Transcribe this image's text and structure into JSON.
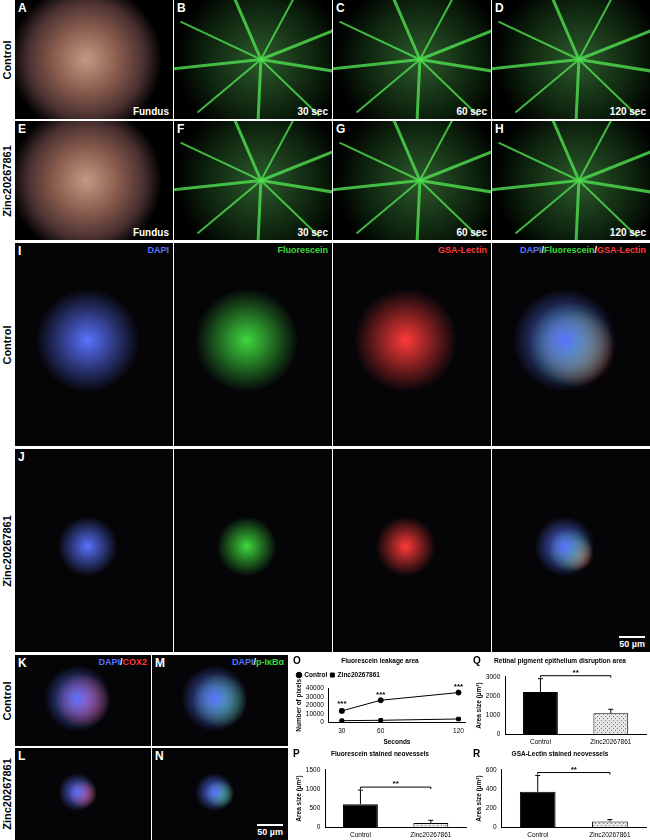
{
  "figure": {
    "fundus_rows": [
      {
        "row_label": "Control",
        "panels": [
          {
            "letter": "A",
            "label": "Fundus"
          },
          {
            "letter": "B",
            "label": "30 sec"
          },
          {
            "letter": "C",
            "label": "60 sec"
          },
          {
            "letter": "D",
            "label": "120 sec"
          }
        ]
      },
      {
        "row_label": "Zinc20267861",
        "panels": [
          {
            "letter": "E",
            "label": "Fundus"
          },
          {
            "letter": "F",
            "label": "30 sec"
          },
          {
            "letter": "G",
            "label": "60 sec"
          },
          {
            "letter": "H",
            "label": "120 sec"
          }
        ]
      }
    ],
    "staining": {
      "channels": [
        {
          "text": "DAPI",
          "colors": [
            "#5a72ff"
          ]
        },
        {
          "text": "Fluorescein",
          "colors": [
            "#3fd83f"
          ]
        },
        {
          "text": "GSA-Lectin",
          "colors": [
            "#ff3a3a"
          ]
        },
        {
          "text": "DAPI/Fluorescein/GSA-Lectin",
          "colors": [
            "#5a72ff",
            "#3fd83f",
            "#ff3a3a"
          ]
        }
      ],
      "rows": [
        {
          "row_label": "Control",
          "letter": "I"
        },
        {
          "row_label": "Zinc20267861",
          "letter": "J",
          "scale_bar": "50 µm"
        }
      ]
    },
    "immuno": {
      "rows": [
        {
          "row_label": "Control",
          "panels": [
            {
              "letter": "K",
              "label": "DAPI/COX2",
              "colors": [
                "#5a72ff",
                "#ff3a3a"
              ]
            },
            {
              "letter": "M",
              "label": "DAPI/p-IκBα",
              "colors": [
                "#5a72ff",
                "#3fd83f"
              ]
            }
          ]
        },
        {
          "row_label": "Zinc20267861",
          "panels": [
            {
              "letter": "L",
              "colors": [
                "#5a72ff",
                "#ff3a3a"
              ]
            },
            {
              "letter": "N",
              "colors": [
                "#5a72ff",
                "#3fd83f"
              ],
              "scale_bar": "50 µm"
            }
          ]
        }
      ]
    }
  },
  "chart_data": [
    {
      "type": "line",
      "panel_letter": "O",
      "title": "Fluorescein leakage area",
      "x_label": "Seconds",
      "y_label": "Number of pixels",
      "x": [
        30,
        60,
        120
      ],
      "xlim": [
        20,
        125
      ],
      "xticks": [
        30,
        60,
        120
      ],
      "ylim": [
        0,
        40000
      ],
      "yticks": [
        0,
        10000,
        20000,
        30000,
        40000
      ],
      "grid": false,
      "legend": "top-left",
      "series": [
        {
          "name": "Control",
          "color": "#000000",
          "marker": "circle",
          "values": [
            13500,
            26000,
            35000
          ],
          "errors": [
            2000,
            800,
            1000
          ]
        },
        {
          "name": "Zinc20267861",
          "color": "#000000",
          "marker": "square",
          "values": [
            2000,
            2500,
            4000
          ],
          "errors": [
            300,
            300,
            400
          ]
        }
      ],
      "annotations": [
        {
          "text": "***",
          "x": 30
        },
        {
          "text": "***",
          "x": 60
        },
        {
          "text": "***",
          "x": 120
        }
      ]
    },
    {
      "type": "bar",
      "panel_letter": "P",
      "title": "Fluorescein stained neovessels",
      "y_label": "Area size (µm²)",
      "categories": [
        "Control",
        "Zinc20267861"
      ],
      "values": [
        600,
        110
      ],
      "errors": [
        370,
        70
      ],
      "colors": [
        "#000000",
        "#e6e6e6"
      ],
      "ylim": [
        0,
        1500
      ],
      "yticks": [
        0,
        500,
        1000,
        1500
      ],
      "grid": false,
      "annotations": [
        {
          "text": "**"
        }
      ]
    },
    {
      "type": "bar",
      "panel_letter": "Q",
      "title": "Retinal pigment epithelium disruption area",
      "y_label": "Area size (µm²)",
      "categories": [
        "Control",
        "Zinc20267861"
      ],
      "values": [
        2200,
        1100
      ],
      "errors": [
        700,
        200
      ],
      "colors": [
        "#000000",
        "#e6e6e6"
      ],
      "ylim": [
        0,
        3000
      ],
      "yticks": [
        0,
        1000,
        2000,
        3000
      ],
      "grid": false,
      "annotations": [
        {
          "text": "**"
        }
      ]
    },
    {
      "type": "bar",
      "panel_letter": "R",
      "title": "GSA-Lectin stained neovessels",
      "y_label": "Area size (µm²)",
      "categories": [
        "Control",
        "Zinc20267861"
      ],
      "values": [
        370,
        60
      ],
      "errors": [
        170,
        20
      ],
      "colors": [
        "#000000",
        "#e6e6e6"
      ],
      "ylim": [
        0,
        600
      ],
      "yticks": [
        0,
        200,
        400,
        600
      ],
      "grid": false,
      "annotations": [
        {
          "text": "**"
        }
      ]
    }
  ]
}
